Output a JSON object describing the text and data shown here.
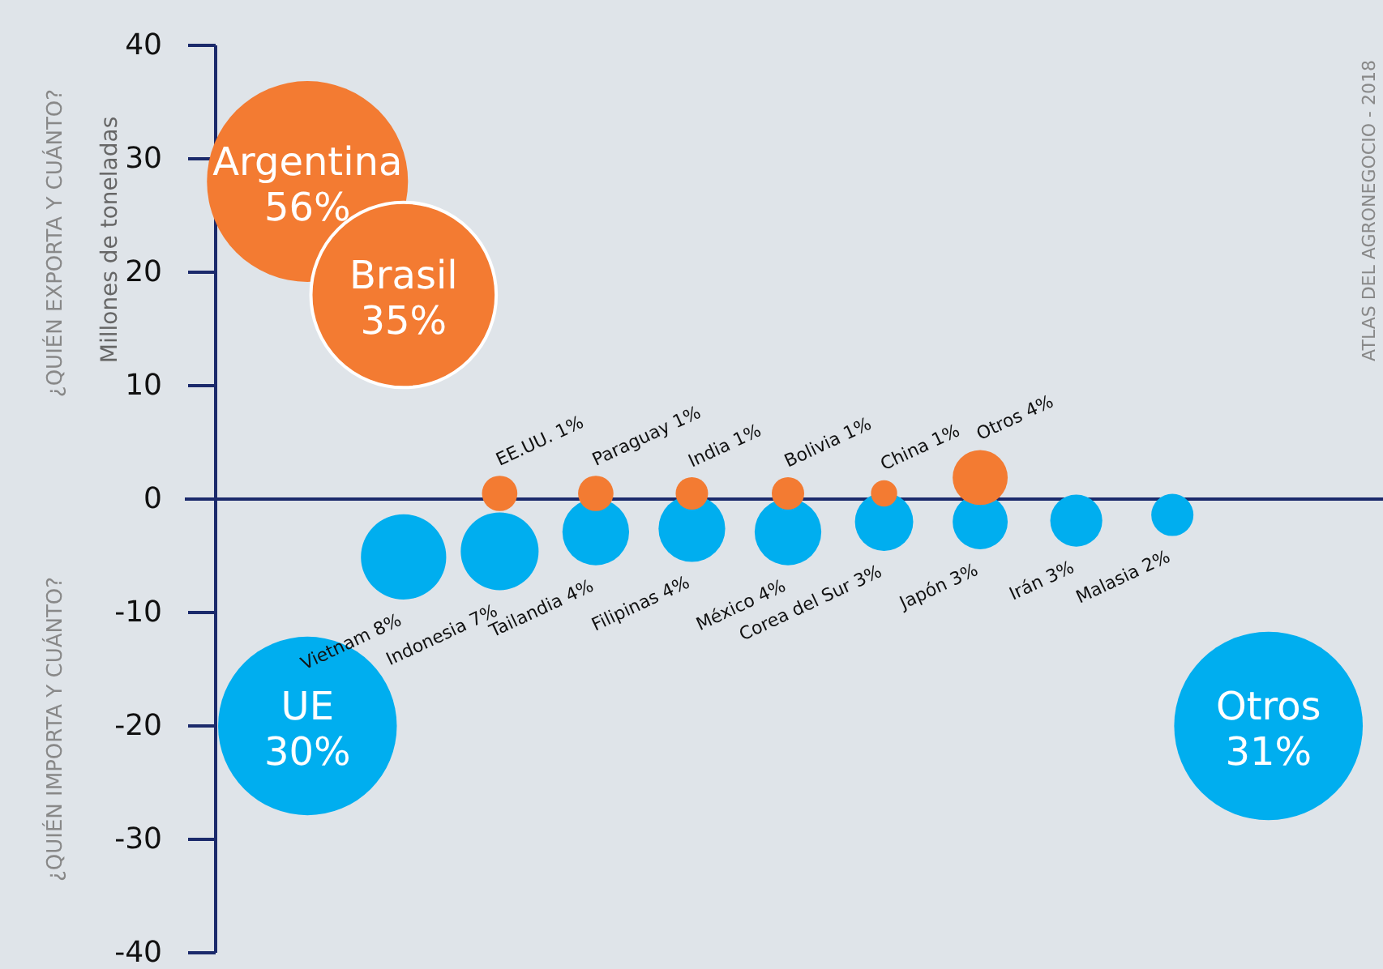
{
  "chart_data": {
    "type": "bubble",
    "ylabel": "Millones de toneladas",
    "annotations": [
      "¿QUIÉN EXPORTA Y CUÁNTO?",
      "¿QUIÉN IMPORTA Y CUÁNTO?",
      "ATLAS DEL AGRONEGOCIO - 2018"
    ],
    "categories": [
      null,
      null,
      null,
      null,
      null,
      null,
      null,
      null,
      null,
      null,
      null
    ],
    "ylim": [
      -40,
      40
    ],
    "yticks": [
      -40,
      -30,
      -20,
      -10,
      0,
      10,
      20,
      30,
      40
    ],
    "ref_lines": [
      {
        "axis": "y",
        "value": 0,
        "color": "#1b2a6b"
      }
    ],
    "series": [
      {
        "color": "#00aeef",
        "values": [
          -20,
          -5.1,
          -4.6,
          -2.9,
          -2.6,
          -2.9,
          -2,
          -2,
          -1.9,
          -1.4,
          -20
        ],
        "sizes": [
          0.79,
          0.18,
          0.15,
          0.11,
          0.11,
          0.11,
          0.084,
          0.075,
          0.067,
          0.044,
          0.88
        ],
        "value_labels": [
          "UE 30%",
          "Vietnam 8%",
          "Indonesia 7%",
          "Tailandia 4%",
          "Filipinas 4%",
          "México 4%",
          "Corea del Sur 3%",
          "Japón 3%",
          "Irán 3%",
          "Malasia 2%",
          "Otros 31%"
        ]
      },
      {
        "color": "#f37b32",
        "values": [
          28,
          18,
          0.5,
          0.5,
          0.5,
          0.5,
          0.5,
          1.9,
          null,
          null,
          null
        ],
        "sizes": [
          1,
          0.85,
          0.031,
          0.031,
          0.026,
          0.026,
          0.017,
          0.075,
          null,
          null,
          null
        ],
        "value_labels": [
          "Argentina 56%",
          "Brasil 35%",
          "EE.UU. 1%",
          "Paraguay 1%",
          "India 1%",
          "Bolivia 1%",
          "China 1%",
          "Otros 4%",
          null,
          null,
          null
        ]
      }
    ]
  }
}
